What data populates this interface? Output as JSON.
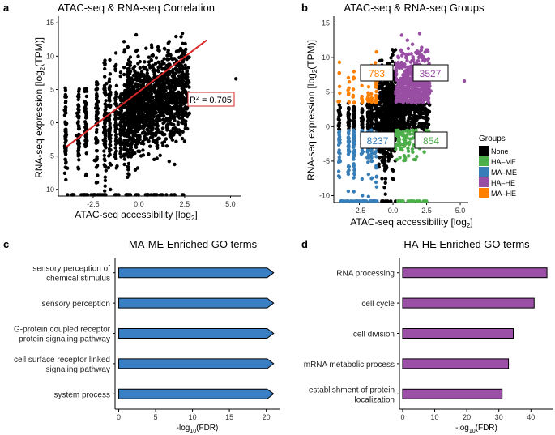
{
  "figure": {
    "panels": [
      "a",
      "b",
      "c",
      "d"
    ]
  },
  "colors": {
    "none": "#000000",
    "ha_me": "#4daf4a",
    "ma_me": "#377eb8",
    "ha_he": "#984ea3",
    "ma_he": "#ff7f00",
    "fit_line": "#d62728",
    "bar_c": "#3a7fc4",
    "bar_d": "#9b4fa6"
  },
  "chart_data": [
    {
      "id": "a",
      "type": "scatter",
      "title": "ATAC-seq & RNA-seq Correlation",
      "xlabel_main": "ATAC-seq accessibility [log",
      "xlabel_sub": "2",
      "xlabel_end": "]",
      "ylabel_main": "RNA-seq expression [log",
      "ylabel_sub": "2",
      "ylabel_end": "(TPM)]",
      "xlim": [
        -4.4,
        5.6
      ],
      "ylim": [
        -11,
        16
      ],
      "xticks": [
        -2.5,
        0.0,
        2.5,
        5.0
      ],
      "xtick_labels": [
        "-2.5",
        "0.0",
        "2.5",
        "5.0"
      ],
      "yticks": [
        -10,
        -5,
        0,
        5,
        10,
        15
      ],
      "ytick_labels": [
        "-10",
        "-5",
        "0",
        "5",
        "10",
        "15"
      ],
      "fit_line": {
        "x": [
          -4.0,
          3.7
        ],
        "y": [
          -3.7,
          12.4
        ]
      },
      "outlier": {
        "x": 5.3,
        "y": 6.6
      },
      "annotation": {
        "r": "R",
        "sup": "2",
        "rest": " = 0.705"
      }
    },
    {
      "id": "b",
      "type": "scatter",
      "title": "ATAC-seq & RNA-seq Groups",
      "xlabel_main": "ATAC-seq accessibility [log",
      "xlabel_sub": "2",
      "xlabel_end": "]",
      "ylabel_main": "RNA-seq expression [log",
      "ylabel_sub": "2",
      "ylabel_end": "(TPM)]",
      "xlim": [
        -4.4,
        5.6
      ],
      "ylim": [
        -11,
        16
      ],
      "xticks": [
        -2.5,
        0.0,
        2.5,
        5.0
      ],
      "xtick_labels": [
        "-2.5",
        "0.0",
        "2.5",
        "5.0"
      ],
      "yticks": [
        -10,
        -5,
        0,
        5,
        10,
        15
      ],
      "ytick_labels": [
        "-10",
        "-5",
        "0",
        "5",
        "10",
        "15"
      ],
      "counts": {
        "ma_he": "783",
        "ha_he": "3527",
        "ma_me": "8237",
        "ha_me": "854"
      },
      "legend": {
        "title": "Groups",
        "placement": "right",
        "entries": [
          {
            "label": "None",
            "key": "none"
          },
          {
            "label": "HA–ME",
            "key": "ha_me"
          },
          {
            "label": "MA–ME",
            "key": "ma_me"
          },
          {
            "label": "HA–HE",
            "key": "ha_he"
          },
          {
            "label": "MA–HE",
            "key": "ma_he"
          }
        ]
      },
      "outlier": {
        "x": 5.3,
        "y": 6.6
      }
    },
    {
      "id": "c",
      "type": "bar",
      "orientation": "horizontal",
      "title": "MA-ME Enriched GO terms",
      "categories": [
        "sensory perception of\nchemical stimulus",
        "sensory perception",
        "G-protein coupled receptor\nprotein signaling pathway",
        "cell surface receptor linked\nsignaling pathway",
        "system process"
      ],
      "values": [
        21.0,
        21.0,
        21.0,
        21.0,
        21.0
      ],
      "xlim": [
        -0.5,
        21.8
      ],
      "xticks": [
        0,
        5,
        10,
        15,
        20
      ],
      "xtick_labels": [
        "0",
        "5",
        "10",
        "15",
        "20"
      ],
      "xlabel_main": "-log",
      "xlabel_sub": "10",
      "xlabel_end": "(FDR)",
      "clipped_arrow": true
    },
    {
      "id": "d",
      "type": "bar",
      "orientation": "horizontal",
      "title": "HA-HE Enriched GO terms",
      "categories": [
        "RNA processing",
        "cell cycle",
        "cell division",
        "mRNA metabolic process",
        "establishment of protein\nlocalization"
      ],
      "values": [
        45.0,
        41.0,
        34.5,
        33.0,
        31.0
      ],
      "xlim": [
        -1,
        47
      ],
      "xticks": [
        0,
        10,
        20,
        30,
        40
      ],
      "xtick_labels": [
        "0",
        "10",
        "20",
        "30",
        "40"
      ],
      "xlabel_main": "-log",
      "xlabel_sub": "10",
      "xlabel_end": "(FDR)",
      "clipped_arrow": false
    }
  ]
}
